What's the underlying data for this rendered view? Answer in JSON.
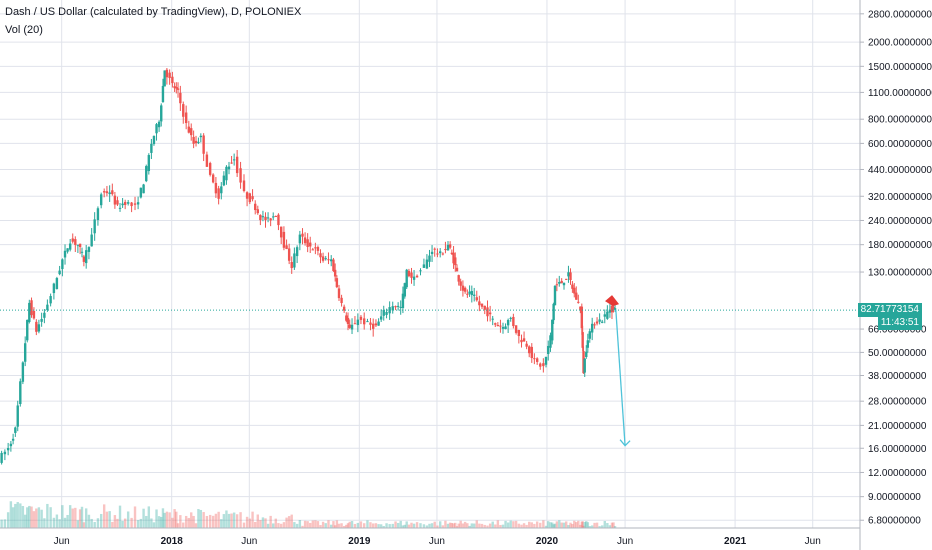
{
  "legend": {
    "title": "Dash / US Dollar (calculated by TradingView), D, POLONIEX",
    "volume": "Vol (20)"
  },
  "price_labels": {
    "last_price": "82.71773154",
    "countdown": "11:43:51"
  },
  "colors": {
    "up": "#26a69a",
    "down": "#ef5350",
    "grid": "#e0e3eb",
    "axis_text": "#131722",
    "projection": "#4fc3d9",
    "marker": "#e53935"
  },
  "chart_data": {
    "type": "candlestick",
    "title": "Dash / US Dollar (calculated by TradingView), D, POLONIEX",
    "y_scale": "log",
    "ylim": [
      6.2,
      3300
    ],
    "y_ticks": [
      {
        "value": 2800,
        "label": "2800.00000000"
      },
      {
        "value": 2000,
        "label": "2000.00000000"
      },
      {
        "value": 1500,
        "label": "1500.00000000"
      },
      {
        "value": 1100,
        "label": "1100.00000000"
      },
      {
        "value": 800,
        "label": "800.00000000"
      },
      {
        "value": 600,
        "label": "600.00000000"
      },
      {
        "value": 440,
        "label": "440.00000000"
      },
      {
        "value": 320,
        "label": "320.00000000"
      },
      {
        "value": 240,
        "label": "240.00000000"
      },
      {
        "value": 180,
        "label": "180.00000000"
      },
      {
        "value": 130,
        "label": "130.00000000"
      },
      {
        "value": 66,
        "label": "66.00000000"
      },
      {
        "value": 50,
        "label": "50.00000000"
      },
      {
        "value": 38,
        "label": "38.00000000"
      },
      {
        "value": 28,
        "label": "28.00000000"
      },
      {
        "value": 21,
        "label": "21.00000000"
      },
      {
        "value": 16,
        "label": "16.00000000"
      },
      {
        "value": 12,
        "label": "12.00000000"
      },
      {
        "value": 9,
        "label": "9.00000000"
      },
      {
        "value": 6.8,
        "label": "6.80000000"
      }
    ],
    "xlim": [
      "2017-02-01",
      "2021-09-01"
    ],
    "x_ticks": [
      {
        "date": "2017-06-01",
        "label": "Jun",
        "bold": false
      },
      {
        "date": "2018-01-01",
        "label": "2018",
        "bold": true
      },
      {
        "date": "2018-06-01",
        "label": "Jun",
        "bold": false
      },
      {
        "date": "2019-01-01",
        "label": "2019",
        "bold": true
      },
      {
        "date": "2019-06-01",
        "label": "Jun",
        "bold": false
      },
      {
        "date": "2020-01-01",
        "label": "2020",
        "bold": true
      },
      {
        "date": "2020-06-01",
        "label": "Jun",
        "bold": false
      },
      {
        "date": "2021-01-01",
        "label": "2021",
        "bold": true
      },
      {
        "date": "2021-06-01",
        "label": "Jun",
        "bold": false
      }
    ],
    "price_path": [
      [
        "2017-02-01",
        14
      ],
      [
        "2017-02-20",
        16
      ],
      [
        "2017-03-05",
        20
      ],
      [
        "2017-03-20",
        45
      ],
      [
        "2017-04-01",
        90
      ],
      [
        "2017-04-15",
        65
      ],
      [
        "2017-05-01",
        80
      ],
      [
        "2017-05-20",
        110
      ],
      [
        "2017-06-05",
        150
      ],
      [
        "2017-06-20",
        190
      ],
      [
        "2017-07-05",
        180
      ],
      [
        "2017-07-16",
        150
      ],
      [
        "2017-08-01",
        200
      ],
      [
        "2017-08-20",
        330
      ],
      [
        "2017-09-05",
        340
      ],
      [
        "2017-09-20",
        280
      ],
      [
        "2017-10-05",
        300
      ],
      [
        "2017-10-25",
        280
      ],
      [
        "2017-11-10",
        380
      ],
      [
        "2017-11-25",
        600
      ],
      [
        "2017-12-10",
        800
      ],
      [
        "2017-12-20",
        1450
      ],
      [
        "2018-01-05",
        1200
      ],
      [
        "2018-01-15",
        1100
      ],
      [
        "2018-02-01",
        750
      ],
      [
        "2018-02-15",
        600
      ],
      [
        "2018-03-01",
        640
      ],
      [
        "2018-03-20",
        400
      ],
      [
        "2018-04-05",
        320
      ],
      [
        "2018-04-20",
        450
      ],
      [
        "2018-05-05",
        500
      ],
      [
        "2018-05-25",
        330
      ],
      [
        "2018-06-10",
        300
      ],
      [
        "2018-06-25",
        250
      ],
      [
        "2018-07-10",
        240
      ],
      [
        "2018-07-25",
        260
      ],
      [
        "2018-08-10",
        180
      ],
      [
        "2018-08-25",
        140
      ],
      [
        "2018-09-10",
        200
      ],
      [
        "2018-09-25",
        180
      ],
      [
        "2018-10-10",
        170
      ],
      [
        "2018-10-25",
        150
      ],
      [
        "2018-11-10",
        150
      ],
      [
        "2018-11-20",
        110
      ],
      [
        "2018-12-05",
        80
      ],
      [
        "2018-12-15",
        65
      ],
      [
        "2019-01-01",
        75
      ],
      [
        "2019-01-20",
        70
      ],
      [
        "2019-02-05",
        68
      ],
      [
        "2019-02-20",
        80
      ],
      [
        "2019-03-10",
        88
      ],
      [
        "2019-03-25",
        85
      ],
      [
        "2019-04-05",
        130
      ],
      [
        "2019-04-20",
        120
      ],
      [
        "2019-05-10",
        140
      ],
      [
        "2019-05-25",
        170
      ],
      [
        "2019-06-10",
        160
      ],
      [
        "2019-06-25",
        180
      ],
      [
        "2019-07-05",
        150
      ],
      [
        "2019-07-15",
        120
      ],
      [
        "2019-07-28",
        100
      ],
      [
        "2019-08-10",
        100
      ],
      [
        "2019-08-25",
        88
      ],
      [
        "2019-09-10",
        80
      ],
      [
        "2019-09-25",
        70
      ],
      [
        "2019-10-10",
        68
      ],
      [
        "2019-10-25",
        75
      ],
      [
        "2019-11-10",
        60
      ],
      [
        "2019-11-25",
        55
      ],
      [
        "2019-12-10",
        45
      ],
      [
        "2019-12-28",
        42
      ],
      [
        "2020-01-10",
        60
      ],
      [
        "2020-01-18",
        110
      ],
      [
        "2020-02-01",
        115
      ],
      [
        "2020-02-14",
        125
      ],
      [
        "2020-02-25",
        100
      ],
      [
        "2020-03-08",
        85
      ],
      [
        "2020-03-13",
        40
      ],
      [
        "2020-03-22",
        60
      ],
      [
        "2020-04-05",
        72
      ],
      [
        "2020-04-20",
        74
      ],
      [
        "2020-05-05",
        84
      ],
      [
        "2020-05-14",
        83
      ]
    ],
    "candles_per_segment": 3,
    "projection_arrow": {
      "from": {
        "date": "2020-05-14",
        "price": 83
      },
      "to": {
        "date": "2020-06-01",
        "price": 16.5
      }
    },
    "marker_flag": {
      "date": "2020-04-23",
      "price": 92
    },
    "last_price_line": 82.71773154
  }
}
